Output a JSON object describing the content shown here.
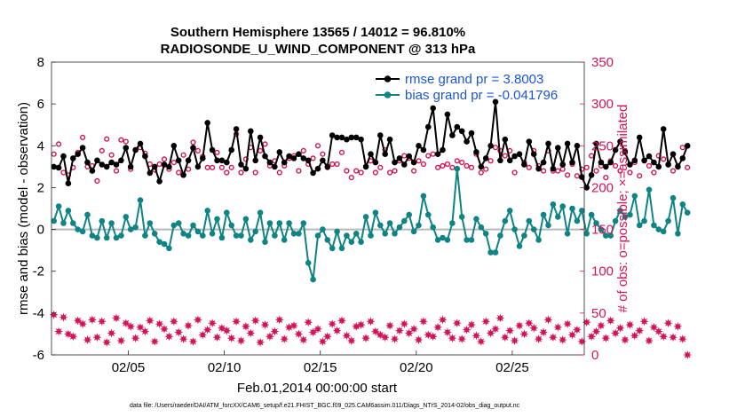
{
  "colors": {
    "rmse": "#000000",
    "bias": "#0e8484",
    "obs": "#d4145a",
    "zero_line": "#b8b8b8",
    "legend_text": "#1a55d6"
  },
  "chart_data": {
    "type": "line",
    "title": "Southern Hemisphere 13565 / 14012 = 96.810%",
    "subtitle": "RADIOSONDE_U_WIND_COMPONENT @ 313 hPa",
    "xlabel": "Feb.01,2014 00:00:00 start",
    "ylabel": "rmse and bias (model - observation)",
    "y2label": "# of obs: o=possible; ×=assimilated",
    "footnote": "data file: /Users/raeder/DAI/ATM_forcXX/CAM6_setup/f.e21.FHIST_BGC.f09_025.CAM6assim.011/Diags_NTrS_2014-02/obs_diag_output.nc",
    "xlim": [
      1,
      28.75
    ],
    "ylim": [
      -6,
      8
    ],
    "y2lim": [
      0,
      350
    ],
    "xticks": [
      5,
      10,
      15,
      20,
      25
    ],
    "xticklabels": [
      "02/05",
      "02/10",
      "02/15",
      "02/20",
      "02/25"
    ],
    "yticks": [
      -6,
      -4,
      -2,
      0,
      2,
      4,
      6,
      8
    ],
    "yticklabels": [
      "-6",
      "-4",
      "-2",
      "0",
      "2",
      "4",
      "6",
      "8"
    ],
    "y2ticks": [
      0,
      50,
      100,
      150,
      200,
      250,
      300,
      350
    ],
    "y2ticklabels": [
      "0",
      "50",
      "100",
      "150",
      "200",
      "250",
      "300",
      "350"
    ],
    "legend": {
      "position": "top-right",
      "entries": [
        "rmse grand pr = 3.8003",
        "bias grand pr = -0.041796"
      ]
    },
    "grid": false,
    "time_step": 0.25,
    "time_start": 1.125,
    "series": [
      {
        "name": "rmse",
        "axis": "left",
        "values": [
          3.0,
          2.95,
          3.5,
          2.2,
          3.4,
          3.6,
          3.9,
          3.2,
          2.8,
          3.3,
          3.1,
          3.0,
          3.2,
          3.1,
          3.3,
          3.9,
          3.0,
          3.8,
          4.1,
          3.5,
          2.7,
          3.0,
          2.3,
          3.1,
          3.0,
          4.0,
          3.3,
          2.6,
          3.3,
          3.9,
          3.0,
          3.4,
          5.1,
          3.8,
          3.3,
          3.3,
          3.2,
          3.8,
          4.8,
          3.1,
          2.9,
          4.7,
          3.3,
          4.4,
          3.5,
          3.2,
          3.0,
          3.7,
          3.2,
          3.5,
          3.4,
          3.6,
          3.4,
          3.3,
          2.7,
          2.9,
          3.3,
          3.0,
          4.5,
          4.4,
          4.4,
          4.3,
          4.4,
          4.4,
          4.3,
          3.0,
          3.6,
          3.2,
          4.5,
          3.6,
          4.3,
          3.2,
          3.4,
          3.1,
          3.5,
          3.2,
          4.0,
          3.8,
          4.9,
          5.8,
          3.6,
          3.8,
          5.5,
          4.5,
          4.9,
          4.7,
          4.2,
          4.6,
          3.7,
          3.0,
          3.4,
          4.0,
          6.1,
          3.3,
          4.3,
          3.3,
          3.5,
          3.6,
          3.1,
          4.2,
          3.6,
          2.9,
          3.2,
          4.1,
          2.9,
          3.9,
          3.1,
          4.1,
          3.2,
          4.0,
          2.5,
          2.0,
          2.6,
          4.1,
          3.2,
          3.0,
          3.2,
          3.8,
          4.2,
          3.7,
          3.1,
          3.3,
          4.4,
          3.3,
          3.5,
          3.2,
          3.0,
          4.8,
          3.1,
          3.6,
          3.0,
          3.4,
          4.0
        ],
        "color": "#000000"
      },
      {
        "name": "bias",
        "axis": "left",
        "values": [
          0.4,
          1.1,
          0.3,
          0.9,
          0.3,
          0.0,
          -0.1,
          0.7,
          -0.3,
          -0.4,
          0.4,
          -0.4,
          0.3,
          -0.4,
          -0.3,
          0.6,
          0.0,
          0.1,
          1.4,
          -0.3,
          0.3,
          -0.2,
          -0.6,
          -0.7,
          -0.9,
          0.2,
          0.3,
          -0.2,
          -0.3,
          0.2,
          -0.1,
          -0.3,
          0.9,
          -0.2,
          0.5,
          -0.4,
          0.8,
          0.2,
          -0.3,
          -0.3,
          0.5,
          -0.5,
          -0.1,
          0.8,
          -0.6,
          0.3,
          -0.3,
          0.3,
          -0.5,
          0.3,
          -0.2,
          -0.2,
          0.3,
          -1.6,
          -2.4,
          -0.3,
          0.0,
          -0.5,
          -0.9,
          -0.1,
          -0.9,
          -0.3,
          -0.6,
          -0.2,
          -0.6,
          0.6,
          -0.3,
          0.8,
          0.2,
          -0.2,
          0.3,
          -0.2,
          0.1,
          0.4,
          0.7,
          -0.1,
          0.2,
          1.6,
          0.7,
          0.1,
          -0.5,
          -0.4,
          -0.5,
          0.3,
          2.9,
          0.6,
          -0.5,
          -0.5,
          0.5,
          0.1,
          -0.2,
          -1.1,
          -1.1,
          -0.3,
          0.4,
          0.9,
          0.0,
          -0.8,
          -0.3,
          0.4,
          0.0,
          -0.5,
          0.7,
          0.2,
          1.2,
          0.6,
          1.1,
          -0.2,
          1.0,
          0.4,
          0.9,
          -0.2,
          0.7,
          0.3,
          0.0,
          -0.3,
          -0.3,
          0.4,
          0.9,
          0.6,
          0.7,
          1.6,
          0.2,
          0.4,
          1.9,
          0.2,
          0.0,
          -0.1,
          0.4,
          1.5,
          -0.2,
          1.2,
          0.8
        ],
        "color": "#0e8484"
      },
      {
        "name": "# of obs possible",
        "axis": "right",
        "marker": "o",
        "values": [
          240,
          252,
          218,
          215,
          224,
          242,
          260,
          225,
          226,
          208,
          244,
          258,
          239,
          220,
          257,
          255,
          222,
          245,
          248,
          241,
          228,
          221,
          228,
          234,
          222,
          230,
          218,
          239,
          222,
          254,
          244,
          237,
          224,
          224,
          242,
          224,
          218,
          224,
          264,
          218,
          234,
          248,
          218,
          244,
          252,
          226,
          232,
          218,
          226,
          235,
          238,
          220,
          244,
          228,
          235,
          250,
          240,
          224,
          228,
          228,
          242,
          220,
          212,
          220,
          218,
          225,
          232,
          218,
          224,
          245,
          218,
          220,
          232,
          238,
          235,
          220,
          232,
          228,
          238,
          240,
          224,
          226,
          228,
          224,
          232,
          230,
          226,
          224,
          240,
          218,
          222,
          232,
          248,
          244,
          238,
          244,
          218,
          240,
          230,
          224,
          244,
          226,
          220,
          244,
          220,
          220,
          222,
          215,
          228,
          214,
          222,
          224,
          238,
          220,
          226,
          212,
          232,
          226,
          220,
          244,
          218,
          230,
          214,
          232,
          226,
          218,
          238,
          234,
          228,
          220,
          226,
          248,
          224
        ],
        "color": "#d4145a"
      },
      {
        "name": "# of obs assimilated",
        "axis": "right",
        "marker": "*",
        "values": [
          48,
          28,
          45,
          25,
          22,
          41,
          37,
          18,
          42,
          21,
          40,
          15,
          26,
          44,
          17,
          38,
          34,
          20,
          33,
          28,
          41,
          16,
          37,
          31,
          22,
          40,
          27,
          19,
          35,
          16,
          42,
          24,
          30,
          38,
          21,
          32,
          29,
          20,
          40,
          17,
          34,
          26,
          41,
          15,
          36,
          22,
          28,
          42,
          19,
          33,
          35,
          25,
          18,
          39,
          27,
          31,
          16,
          22,
          37,
          29,
          41,
          23,
          17,
          34,
          36,
          20,
          40,
          28,
          24,
          21,
          35,
          19,
          29,
          37,
          26,
          31,
          18,
          40,
          24,
          22,
          33,
          42,
          27,
          20,
          38,
          19,
          30,
          36,
          23,
          16,
          40,
          26,
          31,
          44,
          21,
          29,
          17,
          35,
          25,
          38,
          32,
          19,
          27,
          42,
          21,
          33,
          18,
          37,
          24,
          30,
          16,
          39,
          22,
          28,
          35,
          20,
          41,
          26,
          32,
          18,
          36,
          23,
          29,
          40,
          17,
          33,
          28,
          22,
          38,
          21,
          34,
          19,
          0
        ],
        "color": "#d4145a"
      }
    ]
  }
}
